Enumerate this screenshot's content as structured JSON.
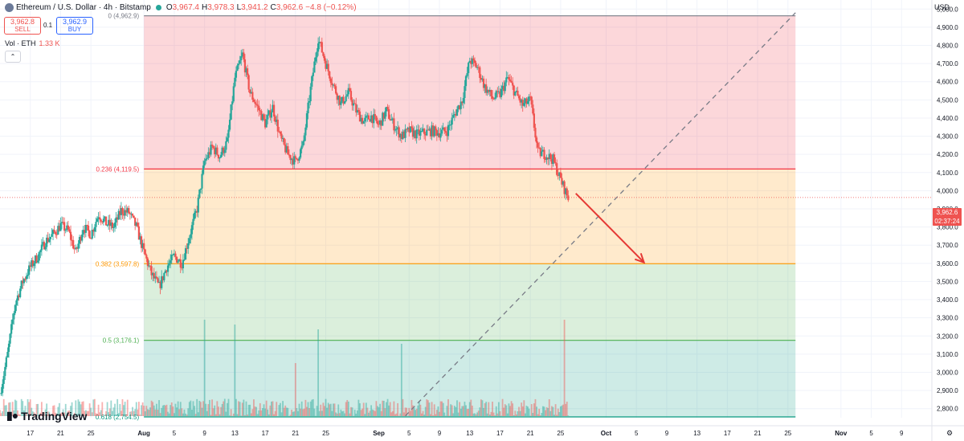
{
  "header": {
    "symbol_title": "Ethereum / U.S. Dollar · 4h · Bitstamp",
    "open": "3,967.4",
    "high": "3,978.3",
    "low": "3,941.2",
    "close": "3,962.6",
    "change": "−4.8 (−0.12%)"
  },
  "trade": {
    "sell_price": "3,962.8",
    "sell_label": "SELL",
    "spread": "0.1",
    "buy_price": "3,962.9",
    "buy_label": "BUY"
  },
  "volume": {
    "label": "Vol · ETH",
    "value": "1.33 K"
  },
  "collapse_icon": "chevron-up-icon",
  "logo_text": "TradingView",
  "price_axis": {
    "currency": "USD",
    "current_price": "3,962.6",
    "countdown": "02:37:24"
  },
  "colors": {
    "up": "#26a69a",
    "down": "#ef5350",
    "fib_0": "#787b86",
    "fib_236": "#f23645",
    "fib_382": "#ff9800",
    "fib_05": "#4caf50",
    "fib_618": "#089981",
    "arrow": "#e53935"
  },
  "chart_data": {
    "type": "candlestick",
    "symbol": "ETH/USD",
    "interval": "4h",
    "exchange": "Bitstamp",
    "y_ticks": [
      2800,
      2900,
      3000,
      3100,
      3200,
      3300,
      3400,
      3500,
      3600,
      3700,
      3800,
      3900,
      4000,
      4100,
      4200,
      4300,
      4400,
      4500,
      4600,
      4700,
      4800,
      4900,
      5000
    ],
    "y_tick_labels": [
      "2,800.0",
      "2,900.0",
      "3,000.0",
      "3,100.0",
      "3,200.0",
      "3,300.0",
      "3,400.0",
      "3,500.0",
      "3,600.0",
      "3,700.0",
      "3,800.0",
      "3,900.0",
      "4,000.0",
      "4,100.0",
      "4,200.0",
      "4,300.0",
      "4,400.0",
      "4,500.0",
      "4,600.0",
      "4,700.0",
      "4,800.0",
      "4,900.0",
      "5,000.0"
    ],
    "ylim": [
      2750,
      5050
    ],
    "x_labels": [
      {
        "text": "17",
        "day": -15
      },
      {
        "text": "21",
        "day": -11
      },
      {
        "text": "25",
        "day": -7
      },
      {
        "text": "Aug",
        "day": 0
      },
      {
        "text": "5",
        "day": 4
      },
      {
        "text": "9",
        "day": 8
      },
      {
        "text": "13",
        "day": 12
      },
      {
        "text": "17",
        "day": 16
      },
      {
        "text": "21",
        "day": 20
      },
      {
        "text": "25",
        "day": 24
      },
      {
        "text": "Sep",
        "day": 31
      },
      {
        "text": "5",
        "day": 35
      },
      {
        "text": "9",
        "day": 39
      },
      {
        "text": "13",
        "day": 43
      },
      {
        "text": "17",
        "day": 47
      },
      {
        "text": "21",
        "day": 51
      },
      {
        "text": "25",
        "day": 55
      },
      {
        "text": "Oct",
        "day": 61
      },
      {
        "text": "5",
        "day": 65
      },
      {
        "text": "9",
        "day": 69
      },
      {
        "text": "13",
        "day": 73
      },
      {
        "text": "17",
        "day": 77
      },
      {
        "text": "21",
        "day": 81
      },
      {
        "text": "25",
        "day": 85
      },
      {
        "text": "Nov",
        "day": 92
      },
      {
        "text": "5",
        "day": 96
      },
      {
        "text": "9",
        "day": 100
      }
    ],
    "xlim_days": [
      -19,
      104
    ],
    "fib_levels": [
      {
        "ratio": "0",
        "price": 4962.9,
        "label": "0 (4,962.9)"
      },
      {
        "ratio": "0.236",
        "price": 4119.5,
        "label": "0.236 (4,119.5)"
      },
      {
        "ratio": "0.382",
        "price": 3597.8,
        "label": "0.382 (3,597.8)"
      },
      {
        "ratio": "0.5",
        "price": 3176.1,
        "label": "0.5 (3,176.1)"
      },
      {
        "ratio": "0.618",
        "price": 2754.5,
        "label": "0.618 (2,754.5)"
      }
    ],
    "fib_range_days": [
      0,
      86
    ],
    "trend_line": {
      "from": {
        "day": 34.5,
        "price": 2760
      },
      "to": {
        "day": 86,
        "price": 4980
      }
    },
    "arrow": {
      "from": {
        "day": 57,
        "price": 3985
      },
      "to": {
        "day": 66,
        "price": 3605
      }
    },
    "price_path": [
      [
        -19,
        2880
      ],
      [
        -18,
        3100
      ],
      [
        -17,
        3380
      ],
      [
        -16,
        3500
      ],
      [
        -15,
        3580
      ],
      [
        -14,
        3640
      ],
      [
        -13,
        3720
      ],
      [
        -12,
        3760
      ],
      [
        -11,
        3810
      ],
      [
        -10,
        3780
      ],
      [
        -9,
        3660
      ],
      [
        -8,
        3800
      ],
      [
        -7,
        3760
      ],
      [
        -6,
        3870
      ],
      [
        -5,
        3820
      ],
      [
        -4,
        3800
      ],
      [
        -3,
        3890
      ],
      [
        -2,
        3880
      ],
      [
        -1,
        3800
      ],
      [
        0,
        3660
      ],
      [
        1,
        3540
      ],
      [
        2,
        3470
      ],
      [
        3,
        3580
      ],
      [
        4,
        3640
      ],
      [
        5,
        3600
      ],
      [
        6,
        3750
      ],
      [
        7,
        3900
      ],
      [
        8,
        4160
      ],
      [
        9,
        4240
      ],
      [
        10,
        4190
      ],
      [
        11,
        4270
      ],
      [
        12,
        4620
      ],
      [
        13,
        4750
      ],
      [
        14,
        4540
      ],
      [
        15,
        4460
      ],
      [
        16,
        4370
      ],
      [
        17,
        4460
      ],
      [
        18,
        4290
      ],
      [
        19,
        4200
      ],
      [
        20,
        4160
      ],
      [
        21,
        4250
      ],
      [
        22,
        4560
      ],
      [
        23,
        4840
      ],
      [
        24,
        4700
      ],
      [
        25,
        4580
      ],
      [
        26,
        4480
      ],
      [
        27,
        4540
      ],
      [
        28,
        4440
      ],
      [
        29,
        4380
      ],
      [
        30,
        4410
      ],
      [
        31,
        4360
      ],
      [
        32,
        4440
      ],
      [
        33,
        4360
      ],
      [
        34,
        4300
      ],
      [
        35,
        4330
      ],
      [
        36,
        4310
      ],
      [
        37,
        4320
      ],
      [
        38,
        4330
      ],
      [
        39,
        4320
      ],
      [
        40,
        4330
      ],
      [
        41,
        4420
      ],
      [
        42,
        4500
      ],
      [
        43,
        4720
      ],
      [
        44,
        4680
      ],
      [
        45,
        4570
      ],
      [
        46,
        4510
      ],
      [
        47,
        4530
      ],
      [
        48,
        4620
      ],
      [
        49,
        4540
      ],
      [
        50,
        4470
      ],
      [
        51,
        4500
      ],
      [
        52,
        4210
      ],
      [
        53,
        4200
      ],
      [
        54,
        4170
      ],
      [
        55,
        4060
      ],
      [
        56,
        3960
      ]
    ],
    "volume_spikes": [
      {
        "day": 8,
        "volume": 1.0
      },
      {
        "day": 12,
        "volume": 0.95
      },
      {
        "day": 20,
        "volume": 0.55
      },
      {
        "day": 23,
        "volume": 0.9
      },
      {
        "day": 34,
        "volume": 0.75
      },
      {
        "day": 55.5,
        "volume": 1.0
      }
    ]
  }
}
